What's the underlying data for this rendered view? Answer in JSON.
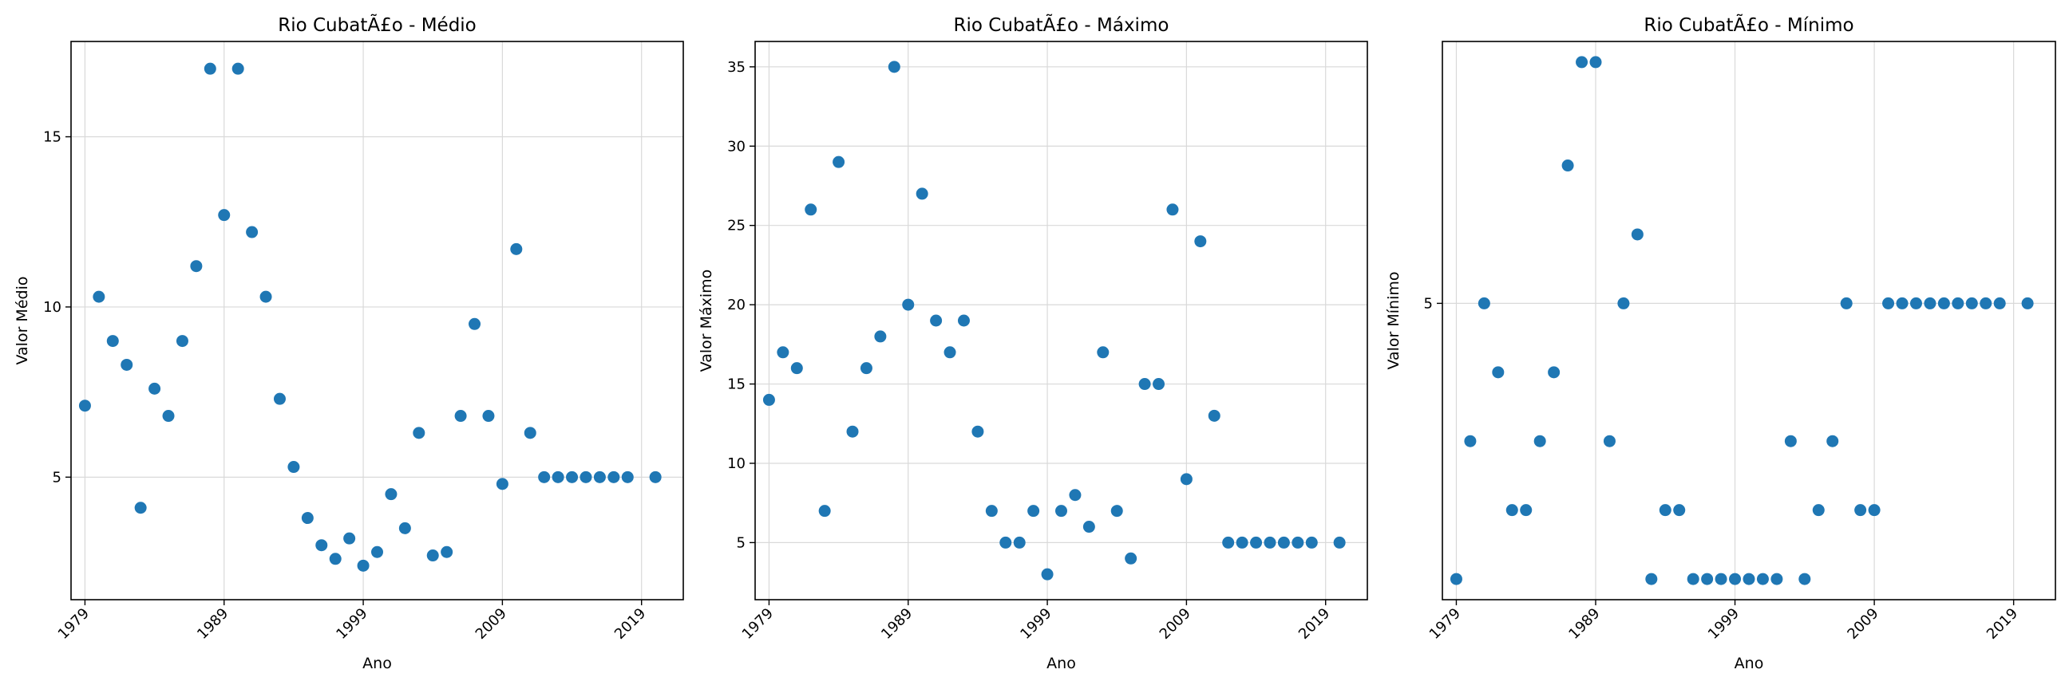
{
  "colors": {
    "marker": "#1f77b4",
    "grid": "#d9d9d9",
    "axes": "#000000"
  },
  "chart_data": [
    {
      "type": "scatter",
      "title": "Rio CubatÃ£o - Médio",
      "xlabel": "Ano",
      "ylabel": "Valor Médio",
      "xlim": [
        1978,
        2022
      ],
      "ylim": [
        1.4,
        17.8
      ],
      "xticks": [
        1979,
        1989,
        1999,
        2009,
        2019
      ],
      "yticks": [
        5,
        10,
        15
      ],
      "grid": true,
      "points": [
        {
          "x": 1979,
          "y": 7.1
        },
        {
          "x": 1980,
          "y": 10.3
        },
        {
          "x": 1981,
          "y": 9.0
        },
        {
          "x": 1982,
          "y": 8.3
        },
        {
          "x": 1983,
          "y": 4.1
        },
        {
          "x": 1984,
          "y": 7.6
        },
        {
          "x": 1985,
          "y": 6.8
        },
        {
          "x": 1986,
          "y": 9.0
        },
        {
          "x": 1987,
          "y": 11.2
        },
        {
          "x": 1988,
          "y": 17.0
        },
        {
          "x": 1989,
          "y": 12.7
        },
        {
          "x": 1990,
          "y": 17.0
        },
        {
          "x": 1991,
          "y": 12.2
        },
        {
          "x": 1992,
          "y": 10.3
        },
        {
          "x": 1993,
          "y": 7.3
        },
        {
          "x": 1994,
          "y": 5.3
        },
        {
          "x": 1995,
          "y": 3.8
        },
        {
          "x": 1996,
          "y": 3.0
        },
        {
          "x": 1997,
          "y": 2.6
        },
        {
          "x": 1998,
          "y": 3.2
        },
        {
          "x": 1999,
          "y": 2.4
        },
        {
          "x": 2000,
          "y": 2.8
        },
        {
          "x": 2001,
          "y": 4.5
        },
        {
          "x": 2002,
          "y": 3.5
        },
        {
          "x": 2003,
          "y": 6.3
        },
        {
          "x": 2004,
          "y": 2.7
        },
        {
          "x": 2005,
          "y": 2.8
        },
        {
          "x": 2006,
          "y": 6.8
        },
        {
          "x": 2007,
          "y": 9.5
        },
        {
          "x": 2008,
          "y": 6.8
        },
        {
          "x": 2009,
          "y": 4.8
        },
        {
          "x": 2010,
          "y": 11.7
        },
        {
          "x": 2011,
          "y": 6.3
        },
        {
          "x": 2012,
          "y": 5.0
        },
        {
          "x": 2013,
          "y": 5.0
        },
        {
          "x": 2014,
          "y": 5.0
        },
        {
          "x": 2015,
          "y": 5.0
        },
        {
          "x": 2016,
          "y": 5.0
        },
        {
          "x": 2017,
          "y": 5.0
        },
        {
          "x": 2018,
          "y": 5.0
        },
        {
          "x": 2020,
          "y": 5.0
        }
      ]
    },
    {
      "type": "scatter",
      "title": "Rio CubatÃ£o - Máximo",
      "xlabel": "Ano",
      "ylabel": "Valor Máximo",
      "xlim": [
        1978,
        2022
      ],
      "ylim": [
        1.4,
        36.6
      ],
      "xticks": [
        1979,
        1989,
        1999,
        2009,
        2019
      ],
      "yticks": [
        5,
        10,
        15,
        20,
        25,
        30,
        35
      ],
      "grid": true,
      "points": [
        {
          "x": 1979,
          "y": 14
        },
        {
          "x": 1980,
          "y": 17
        },
        {
          "x": 1981,
          "y": 16
        },
        {
          "x": 1982,
          "y": 26
        },
        {
          "x": 1983,
          "y": 7
        },
        {
          "x": 1984,
          "y": 29
        },
        {
          "x": 1985,
          "y": 12
        },
        {
          "x": 1986,
          "y": 16
        },
        {
          "x": 1987,
          "y": 18
        },
        {
          "x": 1988,
          "y": 35
        },
        {
          "x": 1989,
          "y": 20
        },
        {
          "x": 1990,
          "y": 27
        },
        {
          "x": 1991,
          "y": 19
        },
        {
          "x": 1992,
          "y": 17
        },
        {
          "x": 1993,
          "y": 19
        },
        {
          "x": 1994,
          "y": 12
        },
        {
          "x": 1995,
          "y": 7
        },
        {
          "x": 1996,
          "y": 5
        },
        {
          "x": 1997,
          "y": 5
        },
        {
          "x": 1998,
          "y": 7
        },
        {
          "x": 1999,
          "y": 3
        },
        {
          "x": 2000,
          "y": 7
        },
        {
          "x": 2001,
          "y": 8
        },
        {
          "x": 2002,
          "y": 6
        },
        {
          "x": 2003,
          "y": 17
        },
        {
          "x": 2004,
          "y": 7
        },
        {
          "x": 2005,
          "y": 4
        },
        {
          "x": 2006,
          "y": 15
        },
        {
          "x": 2007,
          "y": 15
        },
        {
          "x": 2008,
          "y": 26
        },
        {
          "x": 2009,
          "y": 9
        },
        {
          "x": 2010,
          "y": 24
        },
        {
          "x": 2011,
          "y": 13
        },
        {
          "x": 2012,
          "y": 5
        },
        {
          "x": 2013,
          "y": 5
        },
        {
          "x": 2014,
          "y": 5
        },
        {
          "x": 2015,
          "y": 5
        },
        {
          "x": 2016,
          "y": 5
        },
        {
          "x": 2017,
          "y": 5
        },
        {
          "x": 2018,
          "y": 5
        },
        {
          "x": 2020,
          "y": 5
        }
      ]
    },
    {
      "type": "scatter",
      "title": "Rio CubatÃ£o - Mínimo",
      "xlabel": "Ano",
      "ylabel": "Valor Mínimo",
      "xlim": [
        1978,
        2022
      ],
      "ylim": [
        0.7,
        8.8
      ],
      "xticks": [
        1979,
        1989,
        1999,
        2009,
        2019
      ],
      "yticks": [
        5
      ],
      "grid": true,
      "points": [
        {
          "x": 1979,
          "y": 1.0
        },
        {
          "x": 1980,
          "y": 3.0
        },
        {
          "x": 1981,
          "y": 5.0
        },
        {
          "x": 1982,
          "y": 4.0
        },
        {
          "x": 1983,
          "y": 2.0
        },
        {
          "x": 1984,
          "y": 2.0
        },
        {
          "x": 1985,
          "y": 3.0
        },
        {
          "x": 1986,
          "y": 4.0
        },
        {
          "x": 1987,
          "y": 7.0
        },
        {
          "x": 1988,
          "y": 8.5
        },
        {
          "x": 1989,
          "y": 8.5
        },
        {
          "x": 1990,
          "y": 3.0
        },
        {
          "x": 1991,
          "y": 5.0
        },
        {
          "x": 1992,
          "y": 6.0
        },
        {
          "x": 1993,
          "y": 1.0
        },
        {
          "x": 1994,
          "y": 2.0
        },
        {
          "x": 1995,
          "y": 2.0
        },
        {
          "x": 1996,
          "y": 1.0
        },
        {
          "x": 1997,
          "y": 1.0
        },
        {
          "x": 1998,
          "y": 1.0
        },
        {
          "x": 1999,
          "y": 1.0
        },
        {
          "x": 2000,
          "y": 1.0
        },
        {
          "x": 2001,
          "y": 1.0
        },
        {
          "x": 2002,
          "y": 1.0
        },
        {
          "x": 2003,
          "y": 3.0
        },
        {
          "x": 2004,
          "y": 1.0
        },
        {
          "x": 2005,
          "y": 2.0
        },
        {
          "x": 2006,
          "y": 3.0
        },
        {
          "x": 2007,
          "y": 5.0
        },
        {
          "x": 2008,
          "y": 2.0
        },
        {
          "x": 2009,
          "y": 2.0
        },
        {
          "x": 2010,
          "y": 5.0
        },
        {
          "x": 2011,
          "y": 5.0
        },
        {
          "x": 2012,
          "y": 5.0
        },
        {
          "x": 2013,
          "y": 5.0
        },
        {
          "x": 2014,
          "y": 5.0
        },
        {
          "x": 2015,
          "y": 5.0
        },
        {
          "x": 2016,
          "y": 5.0
        },
        {
          "x": 2017,
          "y": 5.0
        },
        {
          "x": 2018,
          "y": 5.0
        },
        {
          "x": 2020,
          "y": 5.0
        }
      ]
    }
  ]
}
